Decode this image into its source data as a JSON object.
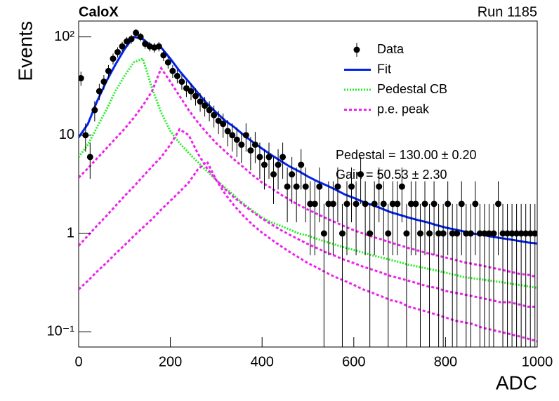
{
  "chart_data": {
    "type": "errorbar",
    "title": "CaloX",
    "subtitle": "Run 1185",
    "x_label": "ADC",
    "y_label": "Events",
    "xlim": [
      0,
      1000
    ],
    "ylim": [
      0.07,
      145
    ],
    "ylog": true,
    "xticks": [
      0,
      200,
      400,
      600,
      800,
      1000
    ],
    "yticks": [
      {
        "value": 0.1,
        "label": "10⁻¹"
      },
      1,
      10,
      {
        "value": 100,
        "label": "10²"
      }
    ],
    "legend": "upper right",
    "data": {
      "name": "Data",
      "color": "#000000",
      "x": [
        5,
        15,
        25,
        35,
        45,
        55,
        65,
        75,
        85,
        95,
        105,
        115,
        125,
        135,
        145,
        155,
        165,
        175,
        185,
        195,
        205,
        215,
        225,
        235,
        245,
        255,
        265,
        275,
        285,
        295,
        305,
        315,
        325,
        335,
        345,
        355,
        365,
        375,
        385,
        395,
        405,
        415,
        425,
        435,
        445,
        455,
        465,
        475,
        485,
        495,
        505,
        515,
        525,
        535,
        545,
        555,
        565,
        575,
        585,
        595,
        605,
        615,
        625,
        635,
        645,
        655,
        665,
        675,
        685,
        695,
        705,
        715,
        725,
        735,
        745,
        755,
        765,
        775,
        785,
        795,
        805,
        815,
        825,
        835,
        845,
        855,
        865,
        875,
        885,
        895,
        905,
        915,
        925,
        935,
        945,
        955,
        965,
        975,
        985,
        995
      ],
      "values": [
        38,
        10,
        6,
        18,
        28,
        35,
        45,
        60,
        70,
        80,
        90,
        95,
        110,
        100,
        85,
        80,
        78,
        80,
        65,
        55,
        45,
        40,
        35,
        30,
        28,
        25,
        22,
        20,
        18,
        16,
        14,
        13,
        11,
        10,
        9,
        8,
        10,
        7,
        8,
        6,
        5,
        6,
        4,
        5,
        6,
        3,
        4,
        3,
        5,
        3,
        2,
        2,
        3,
        1,
        2,
        2,
        3,
        1,
        2,
        3,
        2,
        4,
        2,
        1,
        2,
        3,
        2,
        1,
        2,
        2,
        3,
        1,
        2,
        2,
        1,
        2,
        1,
        2,
        1,
        1,
        2,
        1,
        1,
        2,
        1,
        1,
        2,
        1,
        1,
        1,
        1,
        2,
        1,
        1,
        1,
        1,
        1,
        1,
        1,
        1
      ],
      "errors": [
        6.2,
        3.2,
        2.4,
        4.2,
        5.3,
        5.9,
        6.7,
        7.7,
        8.4,
        8.9,
        9.5,
        9.7,
        10.5,
        10,
        9.2,
        8.9,
        8.8,
        8.9,
        8.1,
        7.4,
        6.7,
        6.3,
        5.9,
        5.5,
        5.3,
        5,
        4.7,
        4.5,
        4.2,
        4,
        3.7,
        3.6,
        3.3,
        3.2,
        3,
        2.8,
        3.2,
        2.6,
        2.8,
        2.4,
        2.2,
        2.4,
        2,
        2.2,
        2.4,
        1.7,
        2,
        1.7,
        2.2,
        1.7,
        1.4,
        1.4,
        1.7,
        1,
        1.4,
        1.4,
        1.7,
        1,
        1.4,
        1.7,
        1.4,
        2,
        1.4,
        1,
        1.4,
        1.7,
        1.4,
        1,
        1.4,
        1.4,
        1.7,
        1,
        1.4,
        1.4,
        1,
        1.4,
        1,
        1.4,
        1,
        1,
        1.4,
        1,
        1,
        1.4,
        1,
        1,
        1.4,
        1,
        1,
        1,
        1,
        1.4,
        1,
        1,
        1,
        1,
        1,
        1,
        1,
        1
      ]
    },
    "curves_x": [
      0,
      20,
      40,
      60,
      80,
      100,
      120,
      140,
      160,
      180,
      200,
      220,
      240,
      260,
      280,
      300,
      320,
      340,
      360,
      380,
      400,
      420,
      440,
      460,
      480,
      500,
      520,
      540,
      560,
      580,
      600,
      620,
      640,
      660,
      680,
      700,
      720,
      740,
      760,
      780,
      800,
      820,
      840,
      860,
      880,
      900,
      920,
      940,
      960,
      980,
      1000
    ],
    "series": [
      {
        "name": "Fit",
        "color": "#0022ee",
        "style": "solid",
        "curves": [
          [
            9.5,
            13,
            22,
            35,
            52,
            75,
            100,
            95,
            80,
            78,
            60,
            45,
            35,
            27,
            21,
            17,
            14,
            12,
            10,
            8.5,
            7.3,
            6.3,
            5.5,
            4.8,
            4.3,
            3.8,
            3.4,
            3.1,
            2.8,
            2.5,
            2.3,
            2.1,
            1.95,
            1.8,
            1.65,
            1.55,
            1.45,
            1.37,
            1.3,
            1.22,
            1.15,
            1.1,
            1.05,
            1.0,
            0.97,
            0.93,
            0.9,
            0.87,
            0.84,
            0.81,
            0.79
          ]
        ]
      },
      {
        "name": "Pedestal CB",
        "color": "#22ee22",
        "style": "dotted",
        "curves": [
          [
            6,
            8,
            12,
            18,
            28,
            40,
            55,
            60,
            30,
            17,
            11,
            8.3,
            6.6,
            5.3,
            4.3,
            3.5,
            2.9,
            2.4,
            2.0,
            1.7,
            1.45,
            1.3,
            1.2,
            1.1,
            1.0,
            0.95,
            0.88,
            0.82,
            0.77,
            0.72,
            0.68,
            0.64,
            0.6,
            0.57,
            0.54,
            0.51,
            0.48,
            0.46,
            0.44,
            0.42,
            0.4,
            0.38,
            0.36,
            0.35,
            0.34,
            0.33,
            0.32,
            0.31,
            0.3,
            0.29,
            0.28
          ]
        ]
      },
      {
        "name": "p.e. peak",
        "color": "#ee22ee",
        "style": "dashed",
        "curves": [
          [
            3.7,
            4.6,
            5.8,
            7.3,
            9.2,
            11.6,
            15,
            20,
            28,
            48,
            35,
            25,
            18,
            13.5,
            10.5,
            8.3,
            6.8,
            5.6,
            4.7,
            3.9,
            3.3,
            2.9,
            2.5,
            2.2,
            1.95,
            1.75,
            1.58,
            1.43,
            1.3,
            1.18,
            1.08,
            1.0,
            0.93,
            0.87,
            0.81,
            0.76,
            0.71,
            0.67,
            0.63,
            0.6,
            0.57,
            0.54,
            0.51,
            0.49,
            0.47,
            0.45,
            0.43,
            0.41,
            0.39,
            0.38,
            0.36
          ],
          [
            0.75,
            0.95,
            1.2,
            1.5,
            1.9,
            2.4,
            3.0,
            3.8,
            4.8,
            6.0,
            8,
            11.5,
            10,
            6.5,
            4.6,
            3.5,
            2.8,
            2.3,
            1.95,
            1.65,
            1.42,
            1.24,
            1.09,
            0.97,
            0.87,
            0.78,
            0.71,
            0.64,
            0.59,
            0.54,
            0.5,
            0.46,
            0.43,
            0.4,
            0.37,
            0.35,
            0.33,
            0.31,
            0.29,
            0.28,
            0.26,
            0.25,
            0.24,
            0.23,
            0.22,
            0.21,
            0.2,
            0.2,
            0.19,
            0.18,
            0.18
          ],
          [
            0.27,
            0.33,
            0.41,
            0.5,
            0.62,
            0.76,
            0.94,
            1.15,
            1.4,
            1.75,
            2.15,
            2.65,
            3.3,
            4.5,
            5.4,
            3.5,
            2.5,
            1.9,
            1.5,
            1.22,
            1.02,
            0.87,
            0.75,
            0.65,
            0.57,
            0.5,
            0.45,
            0.4,
            0.36,
            0.33,
            0.3,
            0.27,
            0.25,
            0.23,
            0.21,
            0.2,
            0.18,
            0.17,
            0.16,
            0.15,
            0.14,
            0.13,
            0.125,
            0.12,
            0.11,
            0.105,
            0.1,
            0.095,
            0.09,
            0.085,
            0.08
          ]
        ]
      }
    ],
    "annotations": [
      "Pedestal = 130.00 ± 0.20",
      "Gain = 50.53 ± 2.30"
    ]
  }
}
